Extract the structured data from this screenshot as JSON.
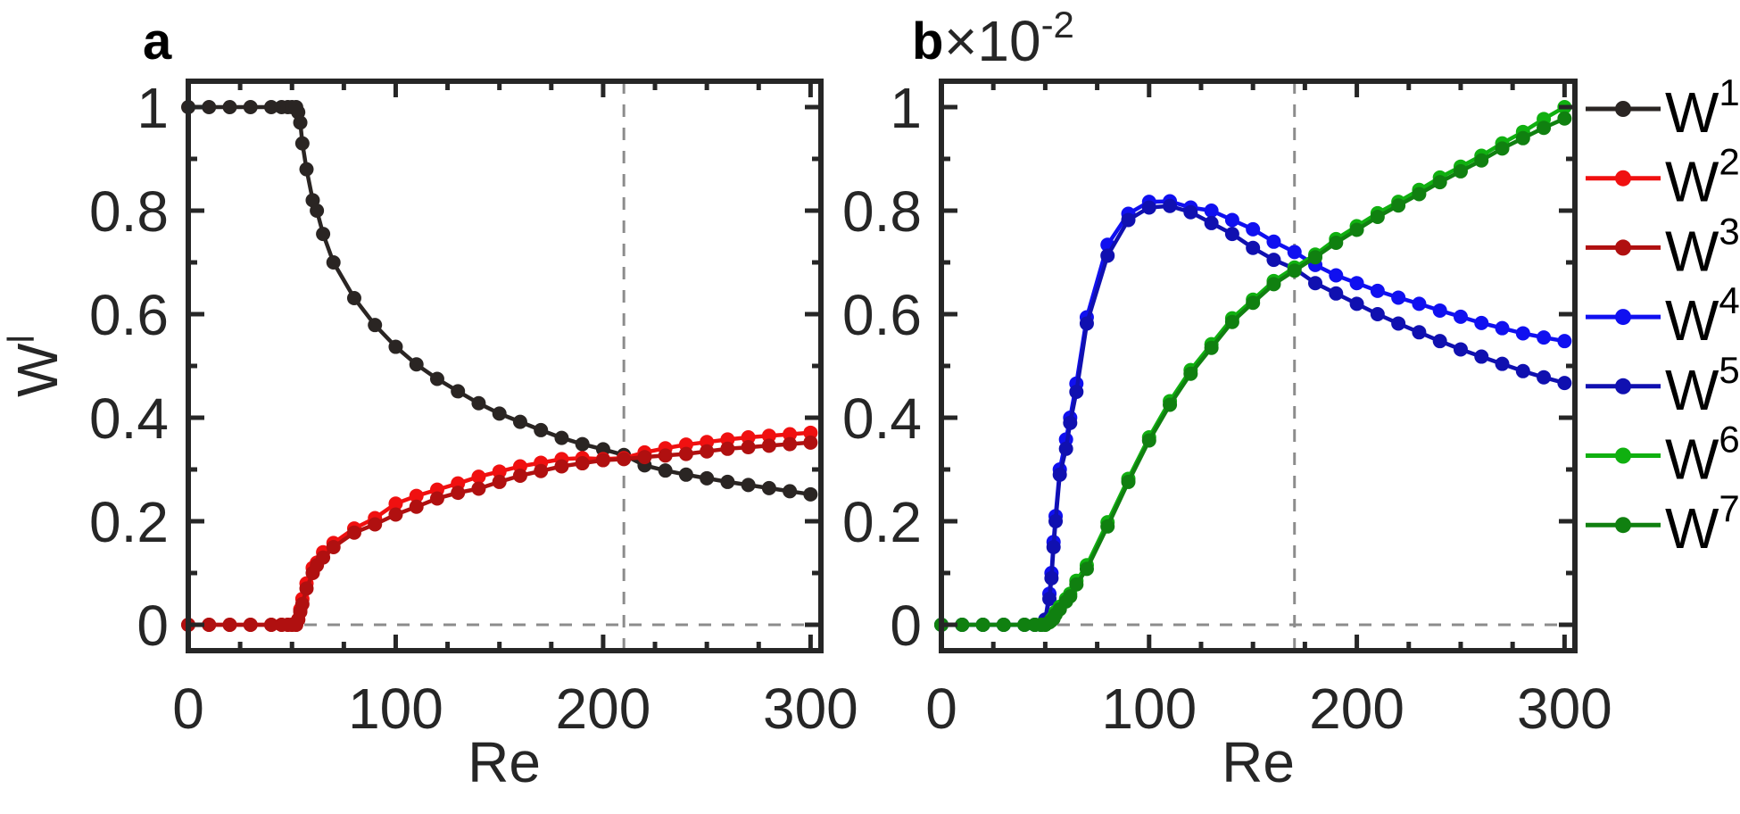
{
  "chart_data": [
    {
      "type": "line",
      "panel_label": "a",
      "xlabel": "Re",
      "ylabel": "W",
      "ylabel_superscript": "l",
      "xlim": [
        0,
        305
      ],
      "ylim": [
        -0.05,
        1.05
      ],
      "xticks": [
        0,
        100,
        200,
        300
      ],
      "xtick_labels": [
        "0",
        "100",
        "200",
        "300"
      ],
      "yticks": [
        0,
        0.2,
        0.4,
        0.6,
        0.8,
        1
      ],
      "ytick_labels": [
        "0",
        "0.2",
        "0.4",
        "0.6",
        "0.8",
        "1"
      ],
      "grid": false,
      "reference_lines": {
        "vertical_x": 210,
        "horizontal_y": 0,
        "color": "#8c8c8c",
        "style": "dashed"
      },
      "x": [
        0,
        10,
        20,
        30,
        40,
        45,
        48,
        50,
        52,
        53,
        54,
        55,
        57,
        60,
        62,
        65,
        70,
        80,
        90,
        100,
        110,
        120,
        130,
        140,
        150,
        160,
        170,
        180,
        190,
        200,
        210,
        220,
        230,
        240,
        250,
        260,
        270,
        280,
        290,
        300
      ],
      "series": [
        {
          "name": "W1",
          "color": "#2a2523",
          "values": [
            1,
            1,
            1,
            1,
            1,
            1,
            1,
            1,
            1,
            0.99,
            0.97,
            0.93,
            0.88,
            0.82,
            0.8,
            0.755,
            0.7,
            0.631,
            0.579,
            0.537,
            0.503,
            0.475,
            0.451,
            0.428,
            0.408,
            0.392,
            0.376,
            0.361,
            0.349,
            0.339,
            0.328,
            0.308,
            0.298,
            0.29,
            0.283,
            0.276,
            0.27,
            0.264,
            0.258,
            0.252
          ]
        },
        {
          "name": "W2",
          "color": "#f01010",
          "values": [
            0,
            0,
            0,
            0,
            0,
            0,
            0,
            0,
            0,
            0.01,
            0.03,
            0.05,
            0.08,
            0.11,
            0.12,
            0.14,
            0.158,
            0.186,
            0.206,
            0.234,
            0.249,
            0.261,
            0.273,
            0.286,
            0.296,
            0.306,
            0.313,
            0.32,
            0.322,
            0.32,
            0.322,
            0.333,
            0.341,
            0.348,
            0.353,
            0.358,
            0.362,
            0.365,
            0.368,
            0.371
          ]
        },
        {
          "name": "W3",
          "color": "#b01010",
          "values": [
            0,
            0,
            0,
            0,
            0,
            0,
            0,
            0,
            0,
            0.01,
            0.025,
            0.04,
            0.07,
            0.1,
            0.115,
            0.13,
            0.15,
            0.178,
            0.194,
            0.213,
            0.228,
            0.244,
            0.255,
            0.263,
            0.276,
            0.288,
            0.297,
            0.306,
            0.312,
            0.318,
            0.32,
            0.324,
            0.327,
            0.33,
            0.335,
            0.34,
            0.343,
            0.346,
            0.349,
            0.352
          ]
        }
      ]
    },
    {
      "type": "line",
      "panel_label": "b",
      "y_multiplier_base": "×10",
      "y_multiplier_exponent": "-2",
      "xlabel": "Re",
      "xlim": [
        0,
        305
      ],
      "ylim": [
        -0.05,
        1.05
      ],
      "xticks": [
        0,
        100,
        200,
        300
      ],
      "xtick_labels": [
        "0",
        "100",
        "200",
        "300"
      ],
      "yticks": [
        0,
        0.2,
        0.4,
        0.6,
        0.8,
        1
      ],
      "ytick_labels": [
        "0",
        "0.2",
        "0.4",
        "0.6",
        "0.8",
        "1"
      ],
      "grid": false,
      "legend_position": "right-outside",
      "reference_lines": {
        "vertical_x": 170,
        "horizontal_y": 0,
        "color": "#8c8c8c",
        "style": "dashed"
      },
      "x": [
        0,
        10,
        20,
        30,
        40,
        45,
        48,
        50,
        52,
        53,
        54,
        55,
        57,
        60,
        62,
        65,
        70,
        80,
        90,
        100,
        110,
        120,
        130,
        140,
        150,
        160,
        170,
        180,
        190,
        200,
        210,
        220,
        230,
        240,
        250,
        260,
        270,
        280,
        290,
        300
      ],
      "series": [
        {
          "name": "W4",
          "color": "#1010f0",
          "values": [
            0,
            0,
            0,
            0,
            0,
            0,
            0,
            0.01,
            0.06,
            0.1,
            0.16,
            0.21,
            0.3,
            0.358,
            0.4,
            0.466,
            0.594,
            0.734,
            0.794,
            0.817,
            0.818,
            0.806,
            0.8,
            0.782,
            0.764,
            0.74,
            0.72,
            0.695,
            0.675,
            0.66,
            0.645,
            0.632,
            0.62,
            0.607,
            0.595,
            0.583,
            0.573,
            0.563,
            0.555,
            0.548
          ]
        },
        {
          "name": "W5",
          "color": "#1010b0",
          "values": [
            0,
            0,
            0,
            0,
            0,
            0,
            0,
            0.01,
            0.05,
            0.09,
            0.15,
            0.2,
            0.29,
            0.34,
            0.39,
            0.45,
            0.582,
            0.713,
            0.782,
            0.806,
            0.809,
            0.797,
            0.776,
            0.755,
            0.728,
            0.705,
            0.688,
            0.66,
            0.64,
            0.62,
            0.6,
            0.582,
            0.565,
            0.548,
            0.532,
            0.518,
            0.504,
            0.49,
            0.478,
            0.467
          ]
        },
        {
          "name": "W6",
          "color": "#10b010",
          "values": [
            0,
            0,
            0,
            0,
            0,
            0,
            0,
            0,
            0.005,
            0.01,
            0.015,
            0.025,
            0.035,
            0.05,
            0.06,
            0.085,
            0.115,
            0.198,
            0.282,
            0.362,
            0.432,
            0.492,
            0.542,
            0.592,
            0.628,
            0.664,
            0.69,
            0.715,
            0.745,
            0.77,
            0.795,
            0.817,
            0.84,
            0.864,
            0.885,
            0.906,
            0.93,
            0.952,
            0.977,
            1.0
          ]
        },
        {
          "name": "W7",
          "color": "#108010",
          "values": [
            0,
            0,
            0,
            0,
            0,
            0,
            0,
            0,
            0.005,
            0.008,
            0.012,
            0.02,
            0.03,
            0.045,
            0.055,
            0.078,
            0.108,
            0.19,
            0.276,
            0.356,
            0.425,
            0.485,
            0.535,
            0.585,
            0.622,
            0.658,
            0.684,
            0.71,
            0.738,
            0.763,
            0.788,
            0.81,
            0.832,
            0.855,
            0.876,
            0.897,
            0.92,
            0.94,
            0.96,
            0.978
          ]
        }
      ],
      "legend": [
        {
          "label": "W",
          "superscript": "1",
          "color": "#2a2523"
        },
        {
          "label": "W",
          "superscript": "2",
          "color": "#f01010"
        },
        {
          "label": "W",
          "superscript": "3",
          "color": "#b01010"
        },
        {
          "label": "W",
          "superscript": "4",
          "color": "#1010f0"
        },
        {
          "label": "W",
          "superscript": "5",
          "color": "#1010b0"
        },
        {
          "label": "W",
          "superscript": "6",
          "color": "#10b010"
        },
        {
          "label": "W",
          "superscript": "7",
          "color": "#108010"
        }
      ]
    }
  ]
}
